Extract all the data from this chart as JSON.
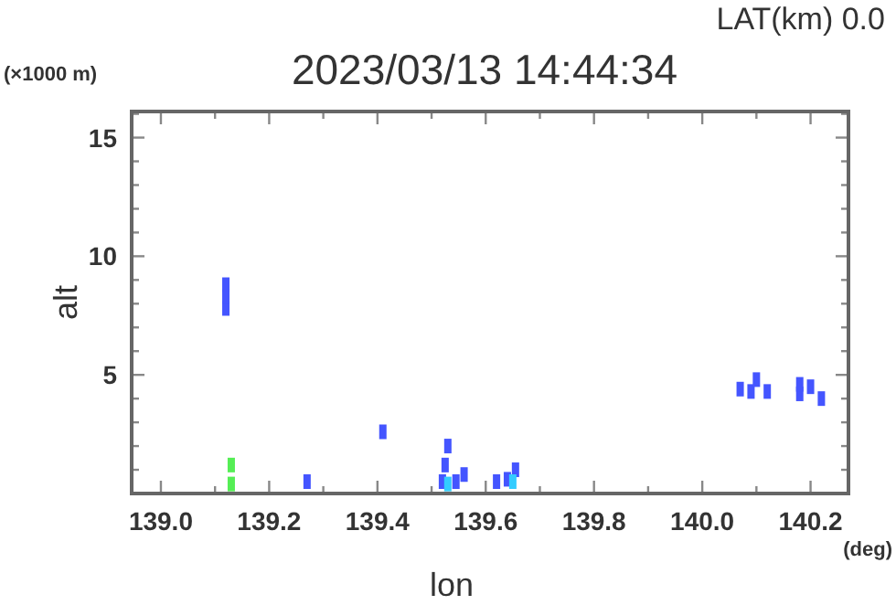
{
  "chart_data": {
    "type": "scatter",
    "title": "2023/03/13 14:44:34",
    "xlabel": "lon",
    "ylabel": "alt",
    "annotations": [
      "LAT(km) 0.0",
      "(×1000 m)",
      "(deg)"
    ],
    "marker": "square",
    "grid": false,
    "xlim": [
      138.946,
      140.27
    ],
    "ylim": [
      0,
      16.1
    ],
    "xticks": [
      {
        "value": 139.0,
        "label": "139.0"
      },
      {
        "value": 139.1,
        "label": null
      },
      {
        "value": 139.2,
        "label": "139.2"
      },
      {
        "value": 139.3,
        "label": null
      },
      {
        "value": 139.4,
        "label": "139.4"
      },
      {
        "value": 139.5,
        "label": null
      },
      {
        "value": 139.6,
        "label": "139.6"
      },
      {
        "value": 139.7,
        "label": null
      },
      {
        "value": 139.8,
        "label": "139.8"
      },
      {
        "value": 139.9,
        "label": null
      },
      {
        "value": 140.0,
        "label": "140.0"
      },
      {
        "value": 140.1,
        "label": null
      },
      {
        "value": 140.2,
        "label": "140.2"
      }
    ],
    "yticks": [
      {
        "value": 1,
        "label": null
      },
      {
        "value": 2,
        "label": null
      },
      {
        "value": 3,
        "label": null
      },
      {
        "value": 4,
        "label": null
      },
      5,
      {
        "value": 6,
        "label": null
      },
      {
        "value": 7,
        "label": null
      },
      {
        "value": 8,
        "label": null
      },
      {
        "value": 9,
        "label": null
      },
      10,
      {
        "value": 11,
        "label": null
      },
      {
        "value": 12,
        "label": null
      },
      {
        "value": 13,
        "label": null
      },
      {
        "value": 14,
        "label": null
      },
      15,
      {
        "value": 16,
        "label": null
      }
    ],
    "series": [
      {
        "color": "#4455ff",
        "x": [
          139.12,
          139.12,
          139.12,
          139.27,
          139.41,
          139.52,
          139.525,
          139.53,
          139.545,
          139.56,
          139.62,
          139.64,
          139.655,
          140.07,
          140.09,
          140.1,
          140.12,
          140.18,
          140.18,
          140.2,
          140.22
        ],
        "values": [
          7.8,
          8.3,
          8.8,
          0.5,
          2.6,
          0.5,
          1.2,
          2.0,
          0.5,
          0.8,
          0.5,
          0.6,
          1.0,
          4.4,
          4.3,
          4.8,
          4.3,
          4.2,
          4.6,
          4.5,
          4.0
        ]
      },
      {
        "color": "#33ccff",
        "x": [
          139.53,
          139.65
        ],
        "values": [
          0.4,
          0.5
        ]
      },
      {
        "color": "#55ee55",
        "x": [
          139.13,
          139.13
        ],
        "values": [
          0.4,
          1.2
        ]
      }
    ]
  }
}
